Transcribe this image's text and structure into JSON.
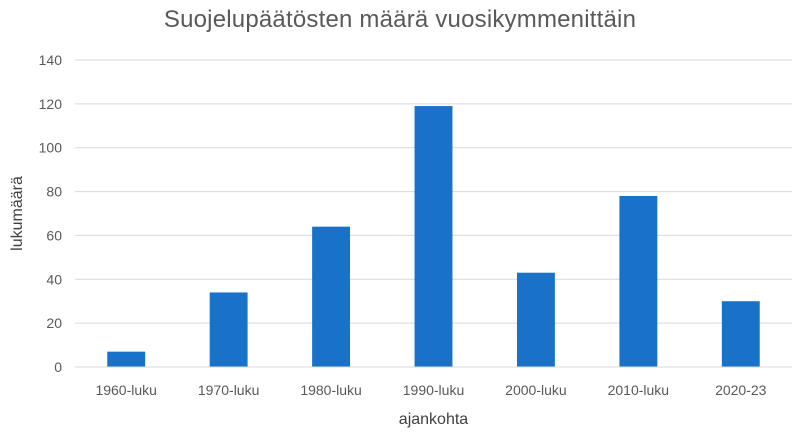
{
  "chart_data": {
    "type": "bar",
    "title": "Suojelupäätösten määrä vuosikymmenittäin",
    "xlabel": "ajankohta",
    "ylabel": "lukumäärä",
    "categories": [
      "1960-luku",
      "1970-luku",
      "1980-luku",
      "1990-luku",
      "2000-luku",
      "2010-luku",
      "2020-23"
    ],
    "values": [
      7,
      34,
      64,
      119,
      43,
      78,
      30
    ],
    "ylim": [
      0,
      140
    ],
    "yticks": [
      0,
      20,
      40,
      60,
      80,
      100,
      120,
      140
    ],
    "grid": true,
    "legend": "none",
    "bar_color": "#1a72c8",
    "grid_color": "#d9d9d9"
  }
}
